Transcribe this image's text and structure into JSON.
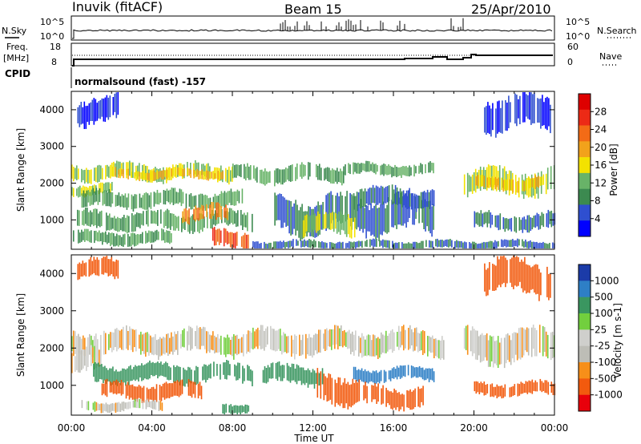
{
  "header": {
    "station": "Inuvik (fitACF)",
    "beam": "Beam 15",
    "date": "25/Apr/2010"
  },
  "summary": {
    "nsky_label": "N.Sky",
    "nsky_ticks": [
      "10^5",
      "10^0"
    ],
    "nsearch_label": "N.Search",
    "freq_label": "Freq.",
    "freq_unit": "[MHz]",
    "freq_ticks": [
      "18",
      "8"
    ],
    "nave_label": "Nave",
    "nave_ticks": [
      "60",
      "0"
    ],
    "cpid_label": "CPID",
    "cpid_text": "normalsound (fast) -157"
  },
  "colors": {
    "power_scale": [
      "#0000ff",
      "#2f4fd0",
      "#3c8a50",
      "#68b368",
      "#f3e200",
      "#f2a21b",
      "#f36b16",
      "#ec2a16",
      "#de0000"
    ],
    "velocity_scale": [
      "#e8000b",
      "#f25a0e",
      "#f78f19",
      "#bdbdb6",
      "#cfcfcc",
      "#72cf3e",
      "#3a9660",
      "#2e7fc6",
      "#1b3ba8"
    ]
  },
  "chart_data": [
    {
      "type": "heatmap",
      "panel": "power",
      "x": [
        "00:00",
        "04:00",
        "08:00",
        "12:00",
        "16:00",
        "20:00",
        "00:00"
      ],
      "xlim_hours": [
        0,
        24
      ],
      "y_ticks": [
        "4000",
        "3000",
        "2000",
        "1000"
      ],
      "ylim": [
        200,
        4500
      ],
      "ylabel": "Slant Range [km]",
      "colorbar": {
        "label": "Power [dB]",
        "ticks": [
          "28",
          "24",
          "20",
          "16",
          "12",
          "8",
          "4"
        ],
        "range": [
          0,
          32
        ]
      },
      "regions": [
        {
          "x0": 0.0,
          "x1": 8.0,
          "y0": 2050,
          "y1": 2550,
          "value": 16
        },
        {
          "x0": 2.0,
          "x1": 7.5,
          "y0": 2100,
          "y1": 2400,
          "value": 20
        },
        {
          "x0": 8.0,
          "x1": 13.5,
          "y0": 2000,
          "y1": 2500,
          "value": 12
        },
        {
          "x0": 13.5,
          "x1": 18.0,
          "y0": 2200,
          "y1": 2550,
          "value": 12
        },
        {
          "x0": 19.5,
          "x1": 24.0,
          "y0": 1650,
          "y1": 2400,
          "value": 16
        },
        {
          "x0": 20.0,
          "x1": 23.5,
          "y0": 1800,
          "y1": 2200,
          "value": 20
        },
        {
          "x0": 0.0,
          "x1": 2.0,
          "y0": 1650,
          "y1": 2000,
          "value": 16
        },
        {
          "x0": 0.5,
          "x1": 8.5,
          "y0": 1300,
          "y1": 1800,
          "value": 12
        },
        {
          "x0": 0.2,
          "x1": 9.0,
          "y0": 700,
          "y1": 1250,
          "value": 12
        },
        {
          "x0": 5.5,
          "x1": 7.8,
          "y0": 900,
          "y1": 1400,
          "value": 24
        },
        {
          "x0": 10.0,
          "x1": 18.0,
          "y0": 600,
          "y1": 1700,
          "value": 8
        },
        {
          "x0": 11.5,
          "x1": 14.2,
          "y0": 550,
          "y1": 1200,
          "value": 16
        },
        {
          "x0": 14.0,
          "x1": 18.0,
          "y0": 1300,
          "y1": 1900,
          "value": 8
        },
        {
          "x0": 0.0,
          "x1": 5.0,
          "y0": 300,
          "y1": 700,
          "value": 12
        },
        {
          "x0": 7.0,
          "x1": 8.8,
          "y0": 200,
          "y1": 750,
          "value": 28
        },
        {
          "x0": 20.0,
          "x1": 24.0,
          "y0": 700,
          "y1": 1200,
          "value": 8
        },
        {
          "x0": 0.3,
          "x1": 2.3,
          "y0": 3600,
          "y1": 4400,
          "value": 4
        },
        {
          "x0": 20.5,
          "x1": 23.8,
          "y0": 3400,
          "y1": 4400,
          "value": 4
        },
        {
          "x0": 9.0,
          "x1": 24.0,
          "y0": 200,
          "y1": 450,
          "value": 8
        }
      ]
    },
    {
      "type": "heatmap",
      "panel": "velocity",
      "x": [
        "00:00",
        "04:00",
        "08:00",
        "12:00",
        "16:00",
        "20:00",
        "00:00"
      ],
      "xlim_hours": [
        0,
        24
      ],
      "y_ticks": [
        "4000",
        "3000",
        "2000",
        "1000"
      ],
      "ylim": [
        200,
        4500
      ],
      "ylabel": "Slant Range [km]",
      "xlabel": "Time UT",
      "colorbar": {
        "label": "Velocity [m s-1]",
        "ticks": [
          "1000",
          "500",
          "100",
          "25",
          "-25",
          "-100",
          "-500",
          "-1000"
        ]
      },
      "regions": [
        {
          "x0": 0.0,
          "x1": 18.5,
          "y0": 1800,
          "y1": 2500,
          "value": 0
        },
        {
          "x0": 19.5,
          "x1": 24.0,
          "y0": 1600,
          "y1": 2500,
          "value": 0
        },
        {
          "x0": 0.0,
          "x1": 1.5,
          "y0": 1300,
          "y1": 2000,
          "value": 0
        },
        {
          "x0": 1.0,
          "x1": 9.0,
          "y0": 1050,
          "y1": 1600,
          "value": 300
        },
        {
          "x0": 9.5,
          "x1": 12.5,
          "y0": 1000,
          "y1": 1550,
          "value": 300
        },
        {
          "x0": 14.0,
          "x1": 18.0,
          "y0": 1100,
          "y1": 1500,
          "value": 600
        },
        {
          "x0": 1.5,
          "x1": 6.5,
          "y0": 600,
          "y1": 1100,
          "value": -200
        },
        {
          "x0": 12.2,
          "x1": 14.3,
          "y0": 500,
          "y1": 1350,
          "value": -300
        },
        {
          "x0": 14.5,
          "x1": 17.5,
          "y0": 400,
          "y1": 1000,
          "value": -200
        },
        {
          "x0": 0.5,
          "x1": 4.5,
          "y0": 300,
          "y1": 600,
          "value": 0
        },
        {
          "x0": 7.5,
          "x1": 8.8,
          "y0": 250,
          "y1": 550,
          "value": 150
        },
        {
          "x0": 20.0,
          "x1": 24.0,
          "y0": 700,
          "y1": 1100,
          "value": -150
        },
        {
          "x0": 0.3,
          "x1": 2.3,
          "y0": 3800,
          "y1": 4400,
          "value": -150
        },
        {
          "x0": 20.5,
          "x1": 23.8,
          "y0": 3400,
          "y1": 4400,
          "value": -150
        }
      ]
    }
  ]
}
